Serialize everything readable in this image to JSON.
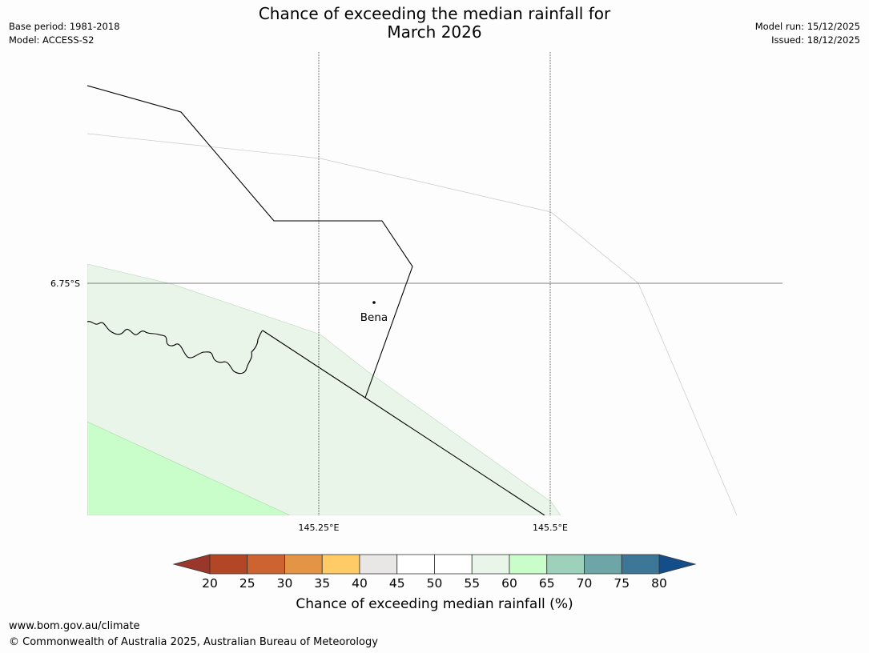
{
  "title": {
    "line1": "Chance of exceeding the median rainfall for",
    "line2": "March 2026"
  },
  "meta_left": {
    "base_period": "Base period: 1981-2018",
    "model": "Model: ACCESS-S2"
  },
  "meta_right": {
    "model_run": "Model run: 15/12/2025",
    "issued": "Issued: 18/12/2025"
  },
  "map": {
    "lat_label": "6.75°S",
    "lon_labels": [
      "145.25°E",
      "145.5°E"
    ],
    "place": {
      "name": "Bena"
    }
  },
  "colorbar": {
    "ticks": [
      "20",
      "25",
      "30",
      "35",
      "40",
      "45",
      "50",
      "55",
      "60",
      "65",
      "70",
      "75",
      "80"
    ],
    "colors": [
      "#b34725",
      "#cc6330",
      "#e39445",
      "#fecb67",
      "#e8e7e6",
      "#ffffff",
      "#ffffff",
      "#eaf5ea",
      "#c9fdc9",
      "#9dd1bb",
      "#6ea5a7",
      "#3d7797"
    ],
    "under_color": "#99382a",
    "over_color": "#144e8a",
    "label": "Chance of exceeding median rainfall (%)"
  },
  "footer": {
    "url": "www.bom.gov.au/climate",
    "copyright": "© Commonwealth of Australia 2025, Australian Bureau of Meteorology"
  }
}
